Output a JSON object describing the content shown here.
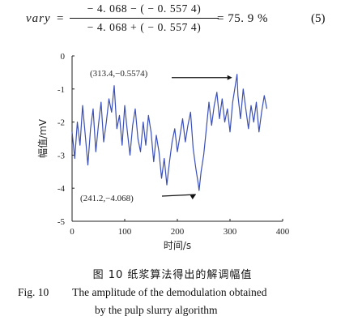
{
  "equation": {
    "lhs": "vary",
    "equals": "=",
    "numerator": "− 4. 068 − ( − 0. 557 4)",
    "denominator": "− 4. 068 + ( − 0. 557 4)",
    "result": "= 75. 9 %",
    "number": "(5)"
  },
  "chart_data": {
    "type": "line",
    "xlabel": "时间/s",
    "ylabel": "幅值/mV",
    "xlim": [
      0,
      400
    ],
    "ylim": [
      -5,
      0
    ],
    "xticks": [
      "0",
      "100",
      "200",
      "300",
      "400"
    ],
    "yticks": [
      "0",
      "-1",
      "-2",
      "-3",
      "-4",
      "-5"
    ],
    "annotations": [
      {
        "text": "(313.4,−0.5574)",
        "x": 313.4,
        "y": -0.5574
      },
      {
        "text": "(241.2,−4.068)",
        "x": 241.2,
        "y": -4.068
      }
    ],
    "series": [
      {
        "color": "#3a4fb8",
        "x": [
          0,
          5,
          10,
          15,
          20,
          25,
          30,
          35,
          40,
          45,
          50,
          55,
          60,
          65,
          70,
          75,
          80,
          85,
          90,
          95,
          100,
          105,
          110,
          115,
          120,
          125,
          130,
          135,
          140,
          145,
          150,
          155,
          160,
          165,
          170,
          175,
          180,
          185,
          190,
          195,
          200,
          205,
          210,
          215,
          220,
          225,
          230,
          235,
          240,
          241.2,
          245,
          250,
          255,
          260,
          265,
          270,
          275,
          280,
          285,
          290,
          295,
          300,
          305,
          310,
          313.4,
          315,
          320,
          325,
          330,
          335,
          340,
          345,
          350,
          355,
          360,
          365,
          370
        ],
        "y": [
          -2.3,
          -3.1,
          -2.0,
          -2.7,
          -1.5,
          -2.4,
          -3.3,
          -2.2,
          -1.6,
          -2.9,
          -2.1,
          -1.4,
          -2.6,
          -2.0,
          -1.3,
          -1.7,
          -0.9,
          -2.2,
          -1.8,
          -2.7,
          -1.5,
          -2.3,
          -3.0,
          -2.1,
          -1.6,
          -2.5,
          -2.9,
          -2.0,
          -2.7,
          -1.8,
          -2.3,
          -3.2,
          -2.4,
          -2.9,
          -3.7,
          -3.1,
          -3.9,
          -3.2,
          -2.6,
          -2.2,
          -2.9,
          -2.4,
          -1.9,
          -2.6,
          -2.1,
          -1.7,
          -2.8,
          -3.4,
          -3.9,
          -4.068,
          -3.5,
          -3.0,
          -2.2,
          -1.4,
          -2.1,
          -1.5,
          -1.1,
          -1.9,
          -1.3,
          -2.0,
          -1.6,
          -2.3,
          -1.4,
          -0.9,
          -0.5574,
          -1.2,
          -1.9,
          -1.0,
          -1.6,
          -2.2,
          -1.5,
          -2.0,
          -1.4,
          -2.3,
          -1.7,
          -1.2,
          -1.6
        ]
      }
    ]
  },
  "caption": {
    "cn": "图 10    纸浆算法得出的解调幅值",
    "en_label": "Fig. 10",
    "en_line1": "The amplitude of the demodulation obtained",
    "en_line2": "by the pulp slurry algorithm"
  }
}
